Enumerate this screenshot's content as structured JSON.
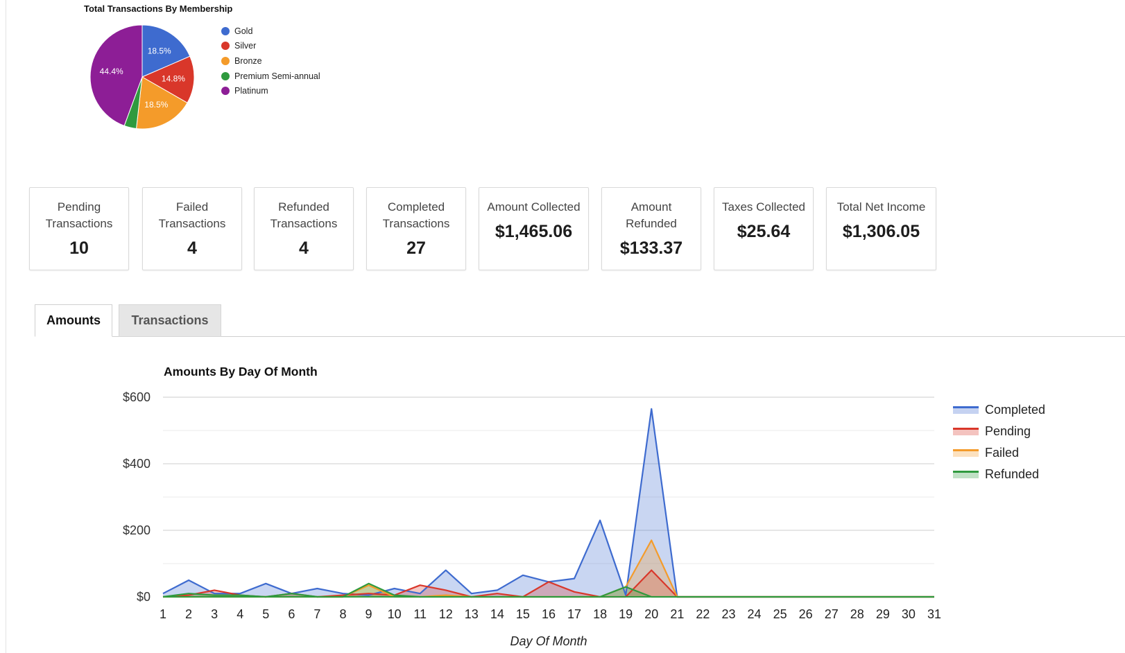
{
  "pie_chart": {
    "title": "Total Transactions By Membership",
    "legend": [
      {
        "label": "Gold",
        "color": "#3e6bcf"
      },
      {
        "label": "Silver",
        "color": "#d9372a"
      },
      {
        "label": "Bronze",
        "color": "#f49b2a"
      },
      {
        "label": "Premium Semi-annual",
        "color": "#2f9a3e"
      },
      {
        "label": "Platinum",
        "color": "#8d1e96"
      }
    ]
  },
  "stats": [
    {
      "label": "Pending Transactions",
      "value": "10"
    },
    {
      "label": "Failed Transactions",
      "value": "4"
    },
    {
      "label": "Refunded Transactions",
      "value": "4"
    },
    {
      "label": "Completed Transactions",
      "value": "27"
    },
    {
      "label": "Amount Collected",
      "value": "$1,465.06"
    },
    {
      "label": "Amount Refunded",
      "value": "$133.37"
    },
    {
      "label": "Taxes Collected",
      "value": "$25.64"
    },
    {
      "label": "Total Net Income",
      "value": "$1,306.05"
    }
  ],
  "tabs": [
    {
      "label": "Amounts",
      "active": true
    },
    {
      "label": "Transactions",
      "active": false
    }
  ],
  "line_chart": {
    "title": "Amounts By Day Of Month",
    "xlabel": "Day Of Month",
    "legend": [
      {
        "label": "Completed",
        "color": "#3e6bcf"
      },
      {
        "label": "Pending",
        "color": "#d9372a"
      },
      {
        "label": "Failed",
        "color": "#f49b2a"
      },
      {
        "label": "Refunded",
        "color": "#2f9a3e"
      }
    ]
  },
  "chart_data": [
    {
      "type": "pie",
      "title": "Total Transactions By Membership",
      "slices": [
        {
          "label": "Gold",
          "value": 18.5,
          "display": "18.5%",
          "color": "#3e6bcf"
        },
        {
          "label": "Silver",
          "value": 14.8,
          "display": "14.8%",
          "color": "#d9372a"
        },
        {
          "label": "Bronze",
          "value": 18.5,
          "display": "18.5%",
          "color": "#f49b2a"
        },
        {
          "label": "Premium Semi-annual",
          "value": 3.8,
          "display": "",
          "color": "#2f9a3e"
        },
        {
          "label": "Platinum",
          "value": 44.4,
          "display": "44.4%",
          "color": "#8d1e96"
        }
      ],
      "legend_position": "right"
    },
    {
      "type": "area",
      "title": "Amounts By Day Of Month",
      "xlabel": "Day Of Month",
      "ylabel": "",
      "x": [
        1,
        2,
        3,
        4,
        5,
        6,
        7,
        8,
        9,
        10,
        11,
        12,
        13,
        14,
        15,
        16,
        17,
        18,
        19,
        20,
        21,
        22,
        23,
        24,
        25,
        26,
        27,
        28,
        29,
        30,
        31
      ],
      "ylim": [
        0,
        600
      ],
      "y_ticks": [
        {
          "value": 0,
          "label": "$0"
        },
        {
          "value": 200,
          "label": "$200"
        },
        {
          "value": 400,
          "label": "$400"
        },
        {
          "value": 600,
          "label": "$600"
        }
      ],
      "grid": true,
      "legend_position": "right",
      "series": [
        {
          "name": "Completed",
          "color": "#3e6bcf",
          "values": [
            10,
            50,
            10,
            10,
            40,
            10,
            25,
            10,
            5,
            25,
            10,
            80,
            10,
            20,
            65,
            45,
            55,
            230,
            5,
            565,
            0,
            0,
            0,
            0,
            0,
            0,
            0,
            0,
            0,
            0,
            0
          ]
        },
        {
          "name": "Pending",
          "color": "#d9372a",
          "values": [
            0,
            5,
            20,
            5,
            0,
            10,
            0,
            5,
            10,
            5,
            35,
            20,
            0,
            10,
            0,
            45,
            15,
            0,
            0,
            80,
            0,
            0,
            0,
            0,
            0,
            0,
            0,
            0,
            0,
            0,
            0
          ]
        },
        {
          "name": "Failed",
          "color": "#f49b2a",
          "values": [
            0,
            0,
            0,
            0,
            0,
            0,
            0,
            0,
            35,
            0,
            0,
            5,
            0,
            0,
            0,
            0,
            0,
            0,
            30,
            170,
            0,
            0,
            0,
            0,
            0,
            0,
            0,
            0,
            0,
            0,
            0
          ]
        },
        {
          "name": "Refunded",
          "color": "#2f9a3e",
          "values": [
            0,
            10,
            5,
            5,
            0,
            10,
            0,
            0,
            40,
            5,
            0,
            0,
            0,
            0,
            0,
            0,
            0,
            0,
            30,
            0,
            0,
            0,
            0,
            0,
            0,
            0,
            0,
            0,
            0,
            0,
            0
          ]
        }
      ]
    }
  ]
}
